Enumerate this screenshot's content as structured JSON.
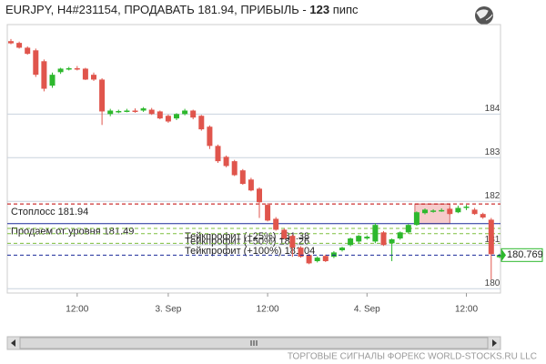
{
  "chart_data": {
    "type": "candlestick",
    "title": "EURJPY, H4#231154, ПРОДАВАТЬ 181.94, ПРИБЫЛЬ -",
    "profit_pips": 123,
    "profit_unit": "пипс",
    "footer": "ТОРГОВЫЕ СИГНАЛЫ ФОРЕКС WORLD-STOCKS.RU LLC",
    "categories": [
      null,
      null,
      null,
      null,
      null,
      null,
      null,
      null,
      "12:00",
      null,
      null,
      null,
      null,
      null,
      null,
      null,
      null,
      null,
      null,
      "3. Sep",
      null,
      null,
      null,
      null,
      null,
      null,
      null,
      null,
      null,
      null,
      null,
      "12:00",
      null,
      null,
      null,
      null,
      null,
      null,
      null,
      null,
      null,
      null,
      null,
      "4. Sep",
      null,
      null,
      null,
      null,
      null,
      null,
      null,
      null,
      null,
      null,
      null,
      "12:00",
      null,
      null,
      null,
      null
    ],
    "open": [
      185.67,
      185.63,
      185.52,
      185.46,
      185.21,
      184.65,
      184.96,
      185.04,
      185.05,
      185.04,
      184.9,
      184.79,
      184.0,
      184.06,
      184.07,
      184.08,
      184.08,
      184.1,
      184.06,
      183.96,
      183.9,
      184.0,
      184.08,
      183.96,
      183.71,
      183.27,
      183.02,
      182.92,
      182.71,
      182.5,
      182.29,
      181.92,
      181.6,
      181.35,
      181.21,
      180.94,
      180.77,
      180.63,
      180.75,
      180.73,
      180.88,
      181.0,
      181.08,
      181.15,
      181.08,
      181.29,
      181.04,
      181.15,
      181.29,
      181.46,
      181.73,
      181.77,
      181.79,
      181.83,
      181.75,
      181.85,
      181.81,
      181.71,
      181.58,
      180.72
    ],
    "high": [
      185.72,
      185.66,
      185.55,
      185.5,
      185.25,
      184.95,
      185.06,
      185.08,
      185.1,
      185.06,
      184.95,
      184.82,
      184.12,
      184.1,
      184.12,
      184.13,
      184.16,
      184.14,
      184.08,
      183.99,
      184.02,
      184.12,
      184.1,
      183.98,
      183.74,
      183.3,
      183.05,
      182.95,
      182.74,
      182.54,
      182.32,
      181.96,
      181.64,
      181.38,
      181.24,
      180.97,
      180.8,
      180.74,
      180.78,
      180.86,
      180.96,
      181.17,
      181.23,
      181.22,
      181.5,
      181.32,
      181.15,
      181.31,
      181.48,
      181.77,
      181.84,
      181.82,
      181.84,
      181.86,
      181.9,
      181.92,
      181.85,
      181.74,
      181.62,
      180.8
    ],
    "low": [
      185.6,
      185.5,
      185.36,
      184.85,
      184.52,
      184.6,
      184.92,
      185.0,
      185.0,
      184.78,
      184.76,
      183.75,
      183.95,
      184.02,
      184.04,
      184.03,
      184.05,
      183.98,
      183.88,
      183.8,
      183.86,
      183.97,
      183.88,
      183.62,
      183.2,
      182.88,
      182.78,
      182.58,
      182.38,
      182.23,
      181.62,
      181.54,
      181.33,
      181.13,
      180.73,
      180.71,
      180.56,
      180.6,
      180.61,
      180.7,
      180.85,
      180.97,
      181.04,
      181.12,
      181.04,
      180.98,
      180.63,
      181.12,
      181.26,
      181.44,
      181.7,
      181.74,
      181.76,
      181.69,
      181.73,
      181.8,
      181.69,
      181.6,
      180.21,
      180.7
    ],
    "close": [
      185.62,
      185.52,
      185.38,
      184.9,
      184.58,
      184.9,
      185.04,
      185.05,
      185.03,
      184.79,
      184.79,
      184.06,
      184.08,
      184.07,
      184.08,
      184.06,
      184.13,
      184.0,
      183.9,
      183.83,
      184.0,
      184.08,
      183.92,
      183.65,
      183.27,
      182.92,
      182.81,
      182.6,
      182.4,
      182.25,
      181.98,
      181.56,
      181.35,
      181.15,
      180.94,
      180.73,
      180.58,
      180.71,
      180.63,
      180.83,
      180.94,
      181.15,
      181.21,
      181.19,
      181.46,
      181.0,
      181.13,
      181.29,
      181.46,
      181.75,
      181.81,
      181.79,
      181.8,
      181.71,
      181.85,
      181.88,
      181.71,
      181.63,
      180.79,
      180.769
    ],
    "up_color": "#2db82d",
    "down_color": "#e0554c",
    "ylim": [
      179.9,
      186.05
    ],
    "yticks": [
      180,
      181,
      182,
      183,
      184
    ],
    "grid": true,
    "levels": [
      {
        "label": "Стоплосс 181.94",
        "value": 181.94,
        "color": "#c00000",
        "dash": true
      },
      {
        "label": "Продаем от уровня 181.49",
        "value": 181.49,
        "color": "#1a2a9a",
        "dash": false
      },
      {
        "label": "Тейкпрофит (+25%) 181.38",
        "value": 181.38,
        "color": "#7fbf3f",
        "dash": true
      },
      {
        "label": "Тейкпрофит (+50%) 181.26",
        "value": 181.26,
        "color": "#7fbf3f",
        "dash": true
      },
      {
        "label": "Тейкпрофит (+100%) 181.04",
        "value": 181.04,
        "color": "#7fbf3f",
        "dash": true
      }
    ],
    "current_price": 180.769,
    "current_color": "#1a2a9a"
  }
}
